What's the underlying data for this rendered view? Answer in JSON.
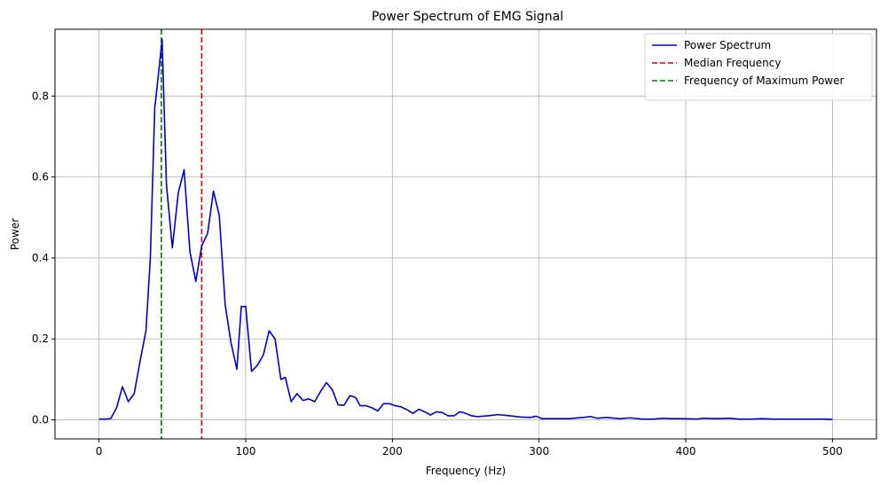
{
  "chart_data": {
    "type": "line",
    "title": "Power Spectrum of EMG Signal",
    "xlabel": "Frequency (Hz)",
    "ylabel": "Power",
    "xlim": [
      -30,
      530
    ],
    "ylim": [
      -0.047,
      0.965
    ],
    "xticks": [
      0,
      100,
      200,
      300,
      400,
      500
    ],
    "xtick_labels": [
      "0",
      "100",
      "200",
      "300",
      "400",
      "500"
    ],
    "yticks": [
      0.0,
      0.2,
      0.4,
      0.6,
      0.8
    ],
    "ytick_labels": [
      "0.0",
      "0.2",
      "0.4",
      "0.6",
      "0.8"
    ],
    "grid": true,
    "legend_position": "top-right",
    "series": [
      {
        "name": "Power Spectrum",
        "color": "#0000cc",
        "style": "solid",
        "x": [
          0,
          4,
          8,
          12,
          16,
          20,
          24,
          28,
          32,
          35,
          38,
          41,
          43,
          46,
          50,
          54,
          58,
          62,
          66,
          70,
          74,
          78,
          82,
          86,
          90,
          94,
          97,
          100,
          104,
          108,
          112,
          116,
          120,
          124,
          127,
          131,
          135,
          139,
          143,
          147,
          151,
          155,
          159,
          163,
          167,
          171,
          175,
          178,
          182,
          186,
          190,
          194,
          198,
          202,
          206,
          210,
          214,
          218,
          222,
          226,
          230,
          234,
          238,
          242,
          246,
          250,
          254,
          258,
          265,
          272,
          280,
          287,
          294,
          298,
          302,
          310,
          320,
          330,
          335,
          340,
          346,
          355,
          362,
          370,
          378,
          385,
          390,
          398,
          408,
          412,
          420,
          430,
          436,
          445,
          452,
          460,
          470,
          478,
          486,
          494,
          500
        ],
        "y": [
          0.002,
          0.002,
          0.003,
          0.03,
          0.082,
          0.045,
          0.065,
          0.145,
          0.22,
          0.4,
          0.77,
          0.87,
          0.94,
          0.58,
          0.425,
          0.56,
          0.618,
          0.415,
          0.342,
          0.43,
          0.46,
          0.565,
          0.505,
          0.285,
          0.19,
          0.125,
          0.28,
          0.28,
          0.12,
          0.135,
          0.16,
          0.22,
          0.2,
          0.1,
          0.105,
          0.045,
          0.065,
          0.048,
          0.052,
          0.045,
          0.07,
          0.092,
          0.075,
          0.037,
          0.036,
          0.06,
          0.055,
          0.035,
          0.035,
          0.03,
          0.022,
          0.04,
          0.04,
          0.035,
          0.032,
          0.025,
          0.016,
          0.026,
          0.02,
          0.012,
          0.02,
          0.018,
          0.01,
          0.01,
          0.02,
          0.016,
          0.01,
          0.008,
          0.01,
          0.013,
          0.01,
          0.007,
          0.006,
          0.009,
          0.003,
          0.003,
          0.003,
          0.006,
          0.008,
          0.004,
          0.006,
          0.003,
          0.005,
          0.002,
          0.002,
          0.004,
          0.003,
          0.003,
          0.002,
          0.004,
          0.003,
          0.004,
          0.002,
          0.002,
          0.003,
          0.002,
          0.002,
          0.002,
          0.002,
          0.002,
          0.001
        ]
      }
    ],
    "vlines": [
      {
        "name": "Median Frequency",
        "x": 70,
        "color": "#dd0000",
        "style": "dashed"
      },
      {
        "name": "Frequency of Maximum Power",
        "x": 42.5,
        "color": "#007700",
        "style": "dashed"
      }
    ]
  }
}
